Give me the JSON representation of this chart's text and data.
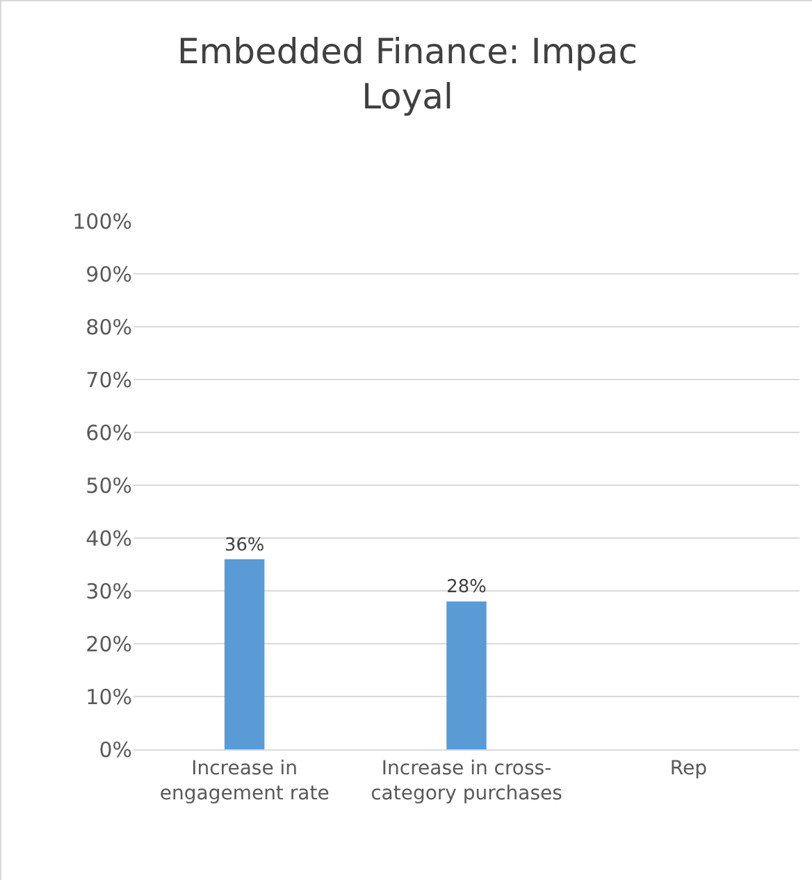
{
  "chart_data": {
    "type": "bar",
    "title": "Embedded Finance: Impac\nLoyal",
    "categories": [
      "Increase in engagement rate",
      "Increase in cross-category purchases",
      "Rep"
    ],
    "values": [
      36,
      28,
      null
    ],
    "color": "#5b9bd5",
    "ylim": [
      0,
      100
    ],
    "yticks": [
      {
        "value": 0,
        "label": "0%"
      },
      {
        "value": 10,
        "label": "10%"
      },
      {
        "value": 20,
        "label": "20%"
      },
      {
        "value": 30,
        "label": "30%"
      },
      {
        "value": 40,
        "label": "40%"
      },
      {
        "value": 50,
        "label": "50%"
      },
      {
        "value": 60,
        "label": "60%"
      },
      {
        "value": 70,
        "label": "70%"
      },
      {
        "value": 80,
        "label": "80%"
      },
      {
        "value": 90,
        "label": "90%"
      },
      {
        "value": 100,
        "label": "100%"
      }
    ],
    "value_labels": [
      "36%",
      "28%",
      null
    ],
    "grid": "y",
    "legend": false
  }
}
